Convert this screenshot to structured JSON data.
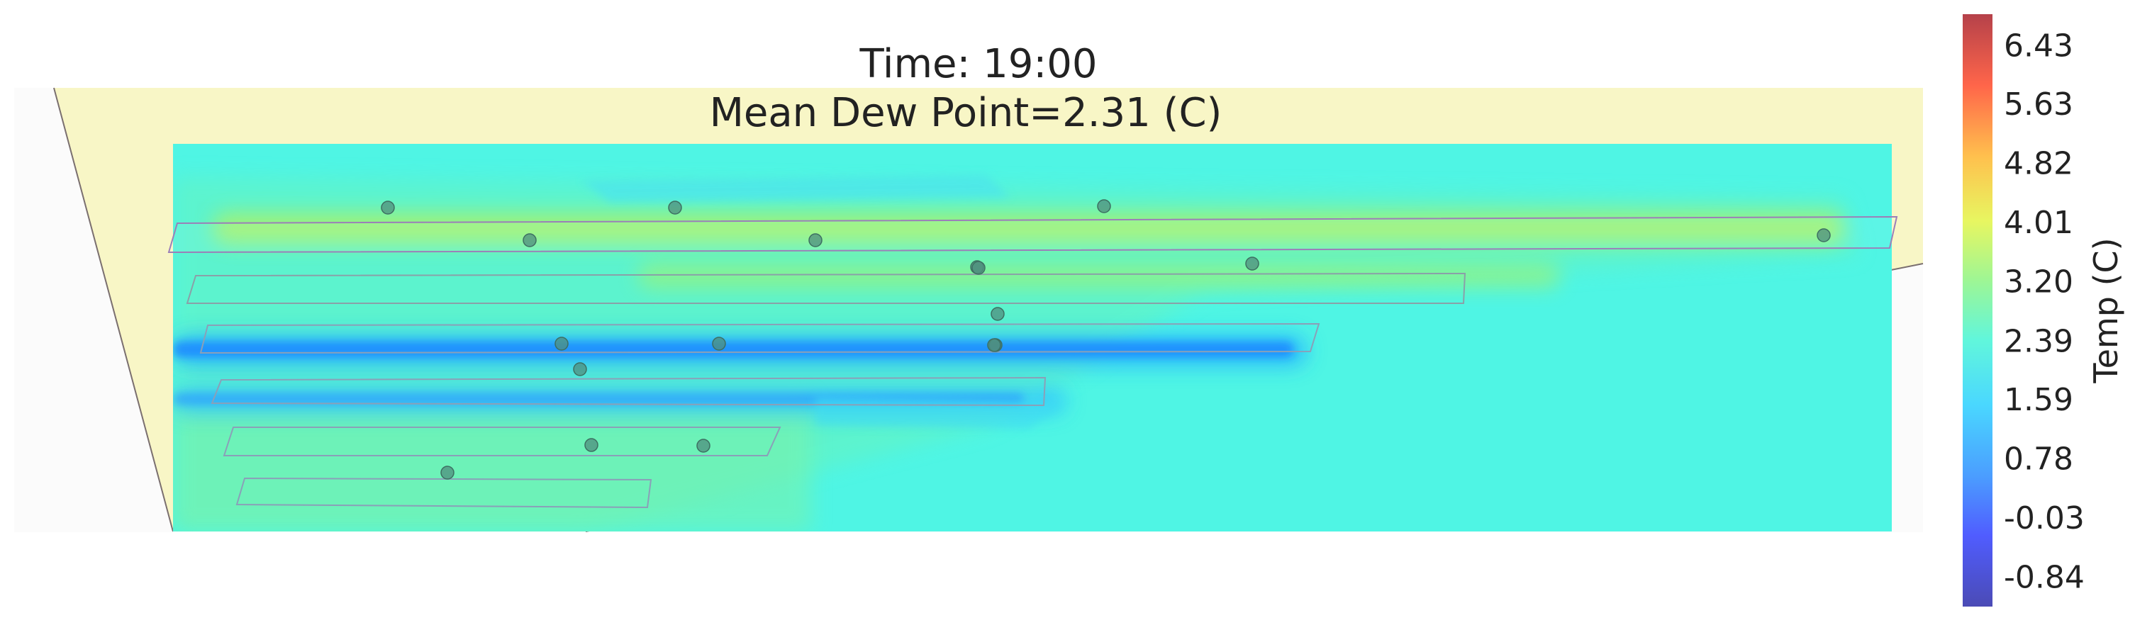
{
  "figure": {
    "title_line1": "Time: 19:00",
    "title_line2": "Mean Dew Point=2.31 (C)"
  },
  "chart_data": {
    "type": "heatmap",
    "title": "Time: 19:00",
    "subtitle": "Mean Dew Point=2.31 (C)",
    "colorbar": {
      "label": "Temp (C)",
      "colormap": "jet",
      "range": [
        -1.25,
        6.85
      ],
      "ticks": [
        "6.43",
        "5.63",
        "4.82",
        "4.01",
        "3.20",
        "2.39",
        "1.59",
        "0.78",
        "-0.03",
        "-0.84"
      ]
    },
    "grid": false,
    "background_value": 1.9,
    "sensor_count": 18,
    "colors": {
      "field_background": "#4ff5e4",
      "outline_fill": "#f8f6c6",
      "outline_stroke": "#7a6f6f",
      "sensor_marker": "#4f8d7d",
      "row_stroke": "#8a8aa0"
    }
  }
}
